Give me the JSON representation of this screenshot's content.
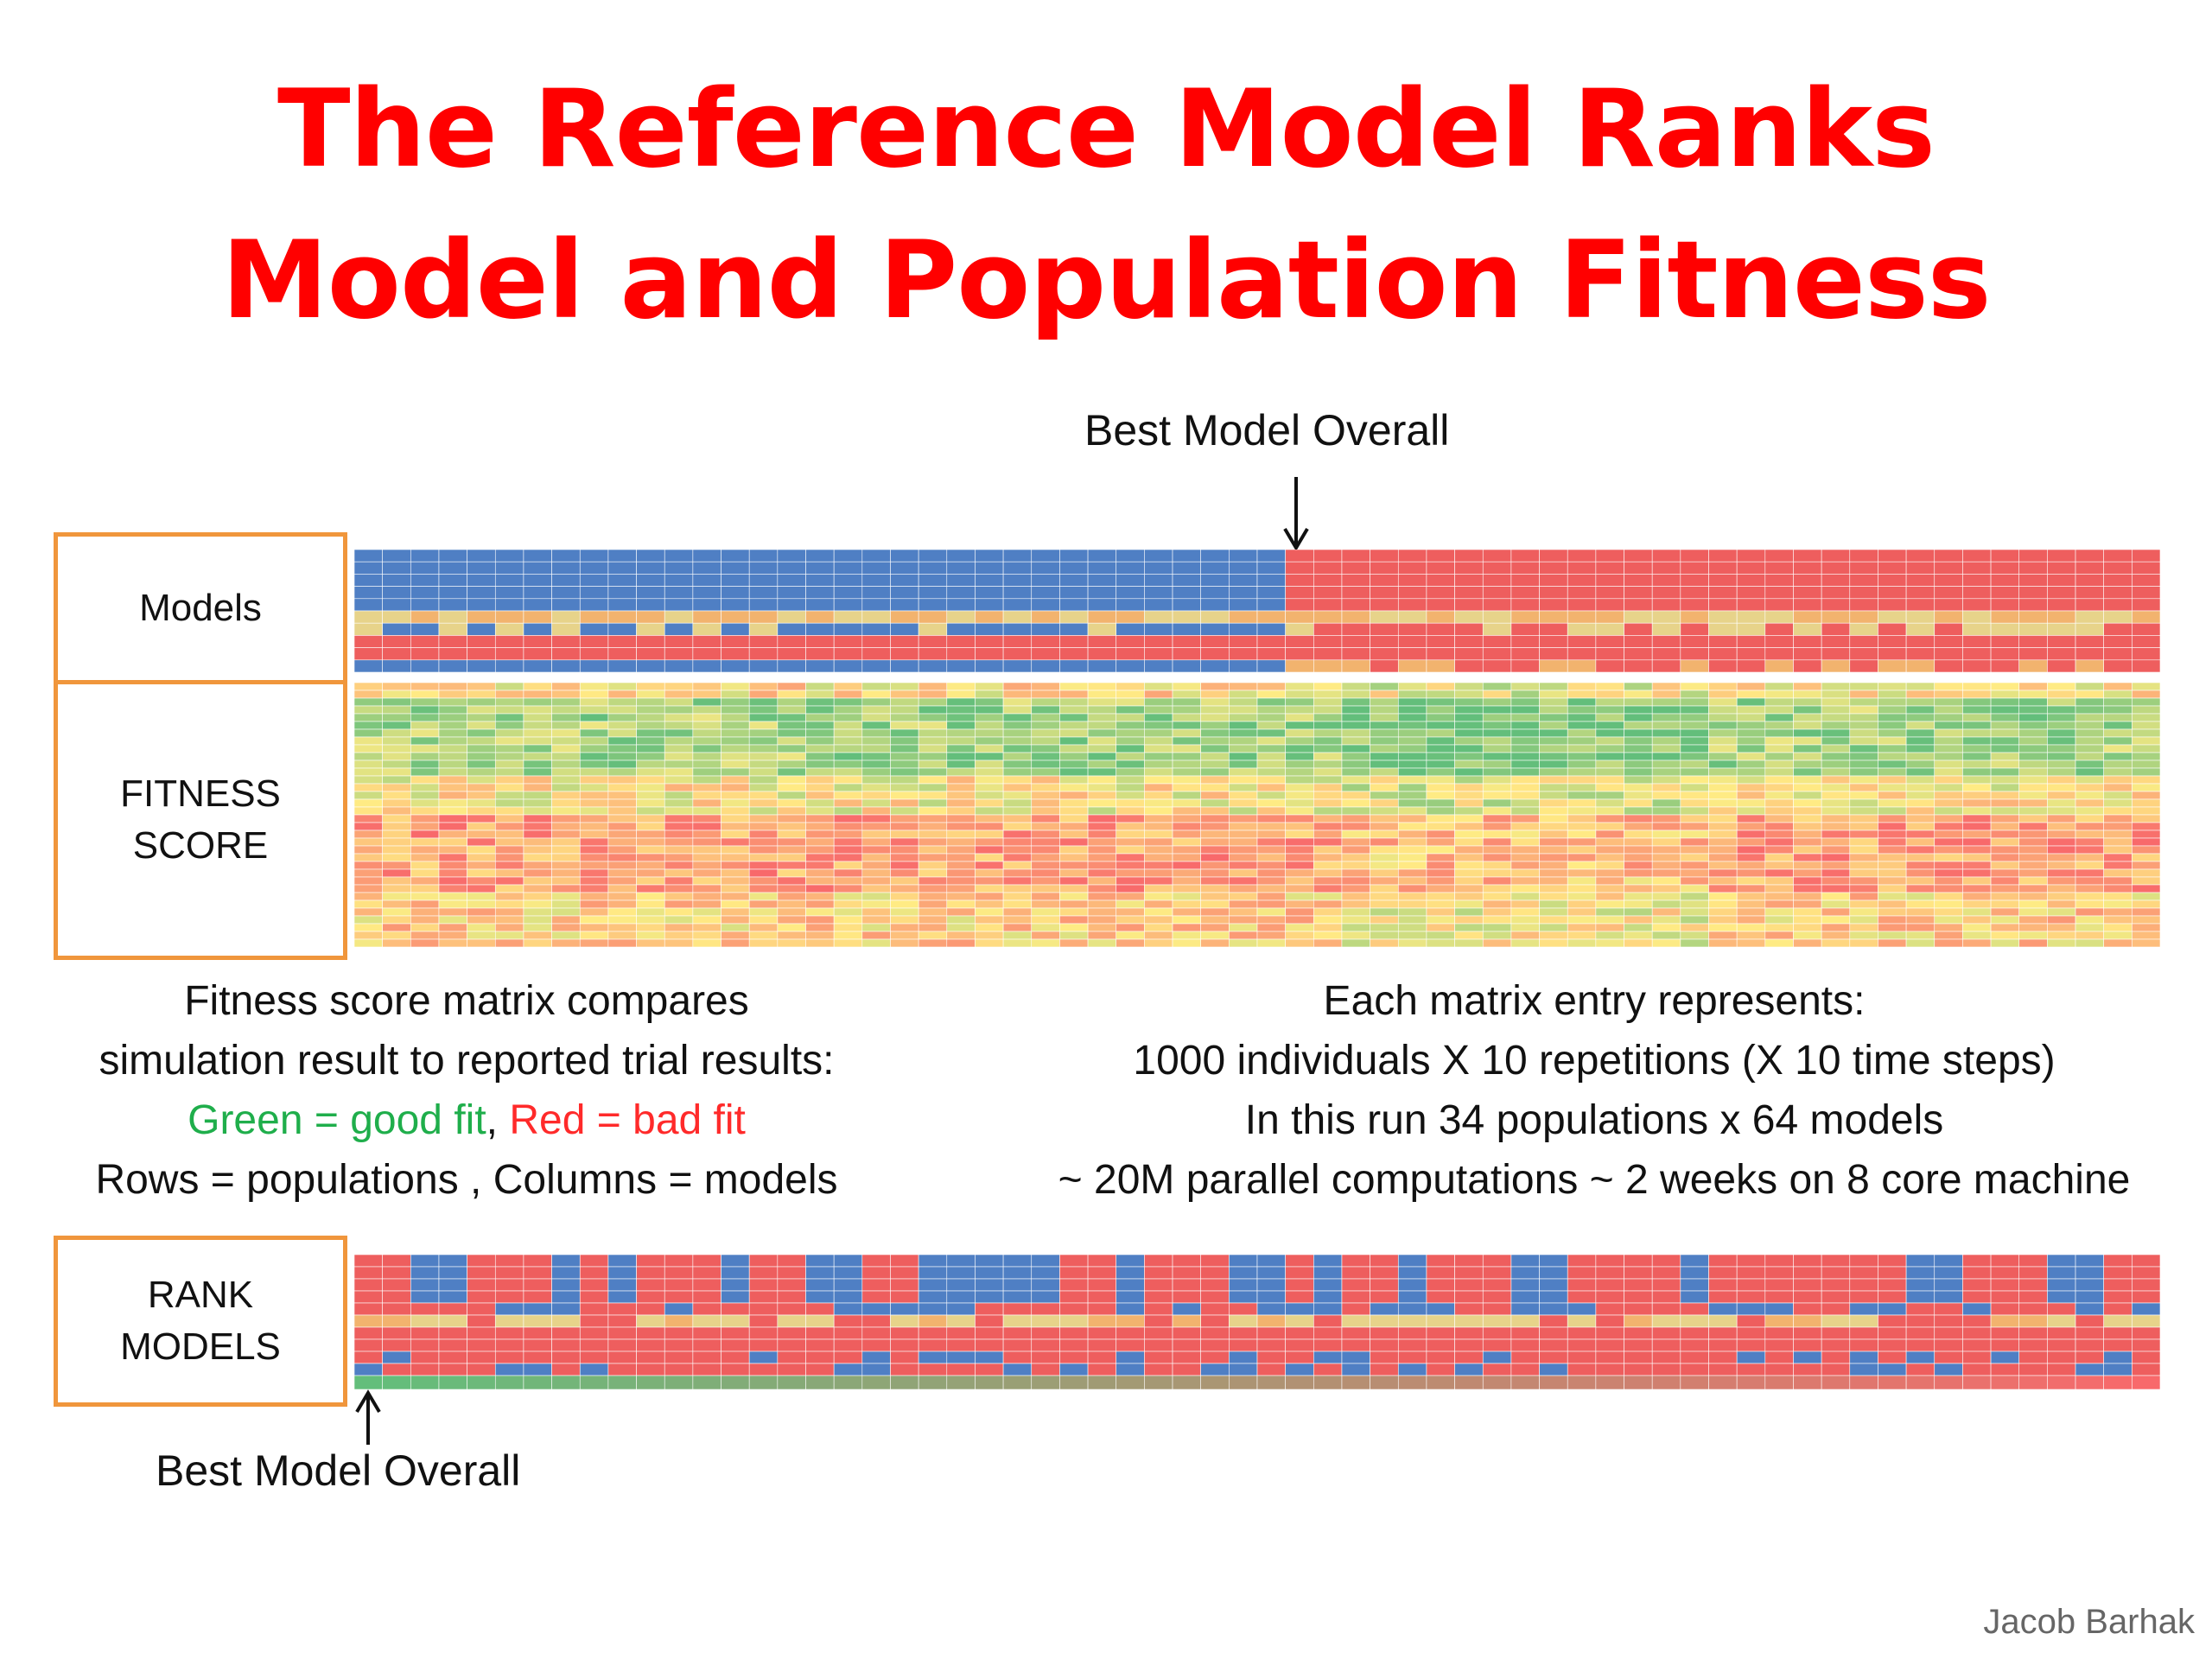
{
  "title": {
    "line1": "The Reference Model Ranks",
    "line2": "Model and Population Fitness"
  },
  "best_model_top_label": "Best Model Overall",
  "best_model_bottom_label": "Best Model Overall",
  "labels": {
    "models": "Models",
    "fitness_line1": "FITNESS",
    "fitness_line2": "SCORE",
    "rank_line1": "RANK",
    "rank_line2": "MODELS"
  },
  "left_text": {
    "line1": "Fitness score matrix compares",
    "line2": "simulation result to reported trial results:",
    "green_part": "Green = good fit",
    "comma": ",",
    "red_part": "Red = bad fit",
    "line4": "Rows = populations , Columns = models"
  },
  "right_text": {
    "line1": "Each matrix entry represents:",
    "line2": "1000 individuals X  10 repetitions (X 10 time steps)",
    "line3": "In this run 34 populations x 64 models",
    "line4": "~ 20M parallel computations  ~ 2 weeks on 8 core machine"
  },
  "author": "Jacob Barhak",
  "colors": {
    "title": "#ff0000",
    "box_border": "#f0963c",
    "model_blue": "#4f7fc4",
    "model_red": "#ee5e5e",
    "good_fit": "#1fae4b",
    "bad_fit": "#ff2a2a"
  }
}
